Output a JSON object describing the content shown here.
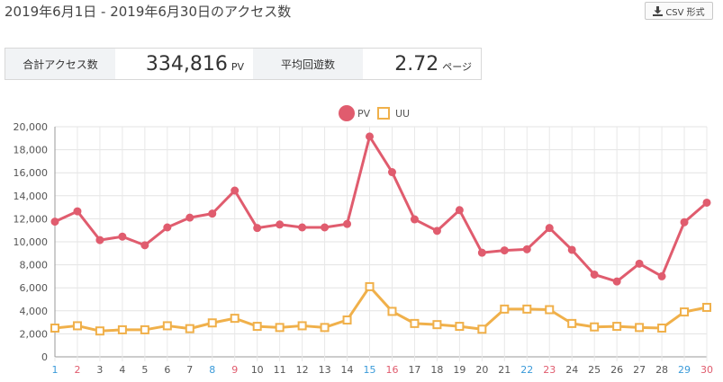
{
  "header": {
    "title": "2019年6月1日 - 2019年6月30日のアクセス数",
    "csv_label": "CSV 形式"
  },
  "stats": [
    {
      "label": "合計アクセス数",
      "value": "334,816",
      "unit": "PV"
    },
    {
      "label": "平均回遊数",
      "value": "2.72",
      "unit": "ページ"
    }
  ],
  "colors": {
    "pv": "#e05c6e",
    "uu": "#f0b04a",
    "saturday": "#3a9ad9",
    "holiday": "#e05c6e",
    "weekday": "#555555"
  },
  "chart_data": {
    "type": "line",
    "x": [
      "1",
      "2",
      "3",
      "4",
      "5",
      "6",
      "7",
      "8",
      "9",
      "10",
      "11",
      "12",
      "13",
      "14",
      "15",
      "16",
      "17",
      "18",
      "19",
      "20",
      "21",
      "22",
      "23",
      "24",
      "25",
      "26",
      "27",
      "28",
      "29",
      "30"
    ],
    "x_label_colors": [
      "saturday",
      "holiday",
      "weekday",
      "weekday",
      "weekday",
      "weekday",
      "weekday",
      "saturday",
      "holiday",
      "weekday",
      "weekday",
      "weekday",
      "weekday",
      "weekday",
      "saturday",
      "holiday",
      "weekday",
      "weekday",
      "weekday",
      "weekday",
      "weekday",
      "saturday",
      "holiday",
      "weekday",
      "weekday",
      "weekday",
      "weekday",
      "weekday",
      "saturday",
      "holiday"
    ],
    "series": [
      {
        "name": "PV",
        "marker": "circle",
        "color": "pv",
        "values": [
          11750,
          12650,
          10150,
          10450,
          9700,
          11250,
          12100,
          12450,
          14450,
          11200,
          11500,
          11250,
          11250,
          11550,
          19150,
          16050,
          11950,
          10950,
          12750,
          9050,
          9250,
          9350,
          11200,
          9300,
          7150,
          6550,
          8100,
          7000,
          11700,
          13400
        ]
      },
      {
        "name": "UU",
        "marker": "square",
        "color": "uu",
        "values": [
          2500,
          2700,
          2250,
          2350,
          2350,
          2700,
          2450,
          2950,
          3350,
          2650,
          2550,
          2700,
          2550,
          3200,
          6100,
          3950,
          2900,
          2800,
          2650,
          2400,
          4150,
          4150,
          4100,
          2900,
          2600,
          2650,
          2550,
          2500,
          3900,
          4300
        ]
      }
    ],
    "ylim": [
      0,
      20000
    ],
    "yticks": [
      "0",
      "2,000",
      "4,000",
      "6,000",
      "8,000",
      "10,000",
      "12,000",
      "14,000",
      "16,000",
      "18,000",
      "20,000"
    ],
    "grid": true,
    "legend_position": "top-center"
  }
}
